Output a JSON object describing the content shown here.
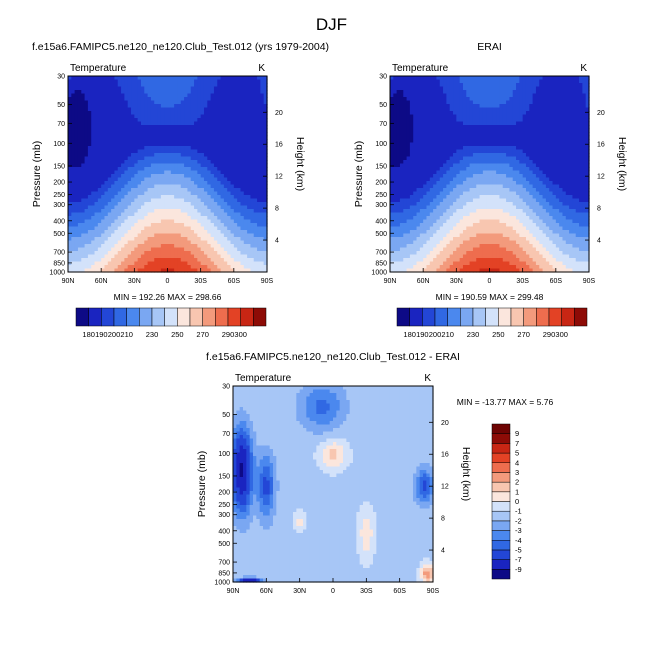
{
  "figure": {
    "title": "DJF"
  },
  "scale_top": {
    "levels": [
      180,
      190,
      200,
      210,
      220,
      230,
      240,
      250,
      260,
      270,
      280,
      290,
      300
    ],
    "labeled": [
      180,
      190,
      200,
      210,
      230,
      250,
      270,
      290,
      300
    ],
    "colors": [
      "#0d0a86",
      "#1a24c0",
      "#2346d6",
      "#3068e3",
      "#4b88ee",
      "#7aa7f2",
      "#a7c6f6",
      "#d3e2fa",
      "#fbe6dd",
      "#f8c6b0",
      "#f39a7c",
      "#ee6d4e",
      "#e34225",
      "#c82614",
      "#8d0b06"
    ]
  },
  "scale_diff": {
    "levels": [
      -9,
      -7,
      -5,
      -4,
      -3,
      -2,
      -1,
      0,
      1,
      2,
      3,
      4,
      5,
      7,
      9
    ],
    "colors": [
      "#0d0a86",
      "#1a24c0",
      "#2346d6",
      "#3068e3",
      "#4b88ee",
      "#7aa7f2",
      "#a7c6f6",
      "#d3e2fa",
      "#fbe6dd",
      "#f8c6b0",
      "#f39a7c",
      "#ee6d4e",
      "#e34225",
      "#c82614",
      "#8d0b06",
      "#6e0403"
    ]
  },
  "chart_data": [
    {
      "type": "heatmap",
      "title": "f.e15a6.FAMIPC5.ne120_ne120.Club_Test.012 (yrs 1979-2004)",
      "left_label": "Temperature",
      "right_label": "K",
      "xlabel": "",
      "ylabel": "Pressure (mb)",
      "ylabel_right": "Height (km)",
      "x_ticks": [
        "90N",
        "60N",
        "30N",
        "0",
        "30S",
        "60S",
        "90S"
      ],
      "y_ticks": [
        30,
        50,
        70,
        100,
        150,
        200,
        250,
        300,
        400,
        500,
        700,
        850,
        1000
      ],
      "height_ticks": [
        4,
        8,
        12,
        16,
        20
      ],
      "scale": "log",
      "ylim": [
        30,
        1000
      ],
      "min_label": "MIN = 192.26",
      "max_label": "MAX = 298.66",
      "min": 192.26,
      "max": 298.66,
      "colorbar": "horizontal"
    },
    {
      "type": "heatmap",
      "title": "ERAI",
      "left_label": "Temperature",
      "right_label": "K",
      "xlabel": "",
      "ylabel": "Pressure (mb)",
      "ylabel_right": "Height (km)",
      "x_ticks": [
        "90N",
        "60N",
        "30N",
        "0",
        "30S",
        "60S",
        "90S"
      ],
      "y_ticks": [
        30,
        50,
        70,
        100,
        150,
        200,
        250,
        300,
        400,
        500,
        700,
        850,
        1000
      ],
      "height_ticks": [
        4,
        8,
        12,
        16,
        20
      ],
      "scale": "log",
      "ylim": [
        30,
        1000
      ],
      "min_label": "MIN = 190.59",
      "max_label": "MAX = 299.48",
      "min": 190.59,
      "max": 299.48,
      "colorbar": "horizontal"
    },
    {
      "type": "heatmap",
      "title": "f.e15a6.FAMIPC5.ne120_ne120.Club_Test.012 - ERAI",
      "left_label": "Temperature",
      "right_label": "K",
      "xlabel": "",
      "ylabel": "Pressure (mb)",
      "ylabel_right": "Height (km)",
      "x_ticks": [
        "90N",
        "60N",
        "30N",
        "0",
        "30S",
        "60S",
        "90S"
      ],
      "y_ticks": [
        30,
        50,
        70,
        100,
        150,
        200,
        250,
        300,
        400,
        500,
        700,
        850,
        1000
      ],
      "height_ticks": [
        4,
        8,
        12,
        16,
        20
      ],
      "scale": "log",
      "ylim": [
        30,
        1000
      ],
      "min_label": "MIN = -13.77",
      "max_label": "MAX =   5.76",
      "min": -13.77,
      "max": 5.76,
      "colorbar": "vertical"
    }
  ]
}
